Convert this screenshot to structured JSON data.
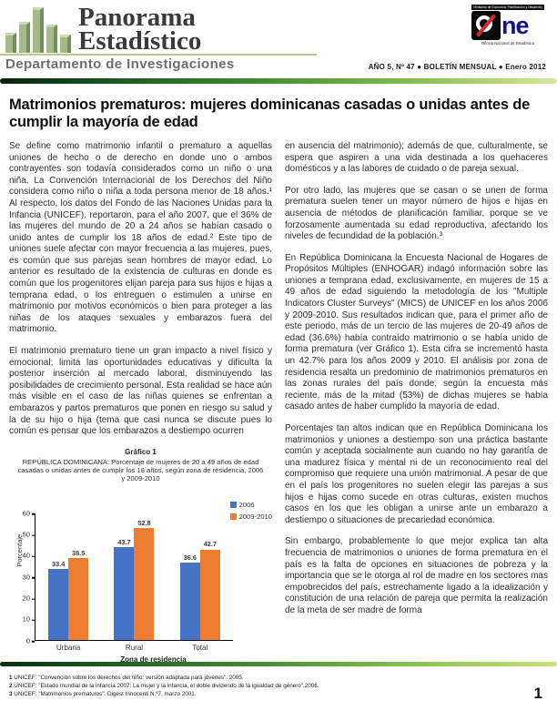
{
  "header": {
    "brand_line1": "Panorama",
    "brand_line2": "Estadístico",
    "department": "Departamento de Investigaciones",
    "issue_line": "AÑO 5, Nº 47 ● BOLETÍN MENSUAL ● Enero 2012",
    "one_logo": {
      "ministry": "Ministerio de Economía, Planificación y Desarrollo",
      "wordmark_suffix": "ne",
      "caption": "Oficina Nacional de Estadística"
    }
  },
  "article": {
    "title": "Matrimonios prematuros: mujeres dominicanas casadas o unidas antes de cumplir la mayoría de edad",
    "left_column": [
      "Se define como matrimonio infantil o prematuro a aquellas uniones de hecho o de derecho en donde uno o ambos contrayentes son todavía considerados como un niño o una niña. La Convención Internacional de los Derechos del Niño considera como niño o niña a toda persona menor de 18 años.¹ Al respecto, los datos del Fondo de las Naciones Unidas para la Infancia (UNICEF), reportaron, para el año 2007, que el 36% de las mujeres del mundo de 20 a 24 años se habían casado o unido antes de cumplir los 18 años de edad.² Este tipo de uniones suele afectar con mayor frecuencia a las mujeres, pues, es común que sus parejas sean hombres de mayor edad. Lo anterior es resultado de la existencia de culturas en donde es común que los progenitores elijan pareja para sus hijos e hijas a temprana edad, o los entreguen o estimulen a unirse en matrimonio por motivos económicos o bien para proteger a las niñas de los ataques sexuales y embarazos fuera del matrimonio.",
      "El matrimonio prematuro tiene un gran impacto a nivel físico y emocional; limita las oportunidades educativas y dificulta la posterior inserción al mercado laboral, disminuyendo las posibilidades de crecimiento personal. Esta realidad se hace aún más visible en el caso de las niñas quienes se enfrentan a embarazos y partos prematuros que ponen en riesgo su salud y la de su hijo o hija (tema que casi nunca se discute pues lo común es pensar que los embarazos a destiempo ocurren"
    ],
    "right_column": [
      "en ausencia del matrimonio); además de que, culturalmente, se espera que aspiren a una vida destinada a los quehaceres domésticos y a las labores de cuidado o de pareja sexual.",
      "Por otro lado, las mujeres que se casan o se unen de forma prematura suelen tener un mayor número de hijos e hijas en ausencia de métodos de planificación familiar, porque se ve forzosamente aumentada su edad reproductiva, afectando los niveles de fecundidad de la población.³",
      "En República Dominicana la Encuesta Nacional de Hogares de Propósitos Múltiples (ENHOGAR) indagó información sobre las uniones a temprana edad, exclusivamente, en mujeres de 15 a 49 años de edad siguiendo la metodología de los \"Multiple Indicators Cluster Surveys\" (MICS) de UNICEF en los años 2006 y 2009-2010. Sus resultados indican que, para el primer año de este periodo, más de un tercio de las mujeres de 20-49 años de edad (36.6%) había contraído matrimonio o se había unido de forma prematura (ver Gráfico 1). Esta cifra se incrementó hasta un 42.7% para los años 2009 y 2010. El análisis por zona de residencia resalta un predominio de matrimonios prematuros en las zonas rurales del país donde, según la encuesta más reciente, más de la mitad (53%) de dichas mujeres se había casado antes de haber cumplido la mayoría de edad.",
      "Porcentajes tan altos indican que en República Dominicana los matrimonios y uniones a destiempo son una práctica bastante común y aceptada socialmente aun cuando no hay garantía de una madurez física y mental ni de un reconocimiento real del compromiso que requiere una unión matrimonial. A pesar de que en el país los progenitores no suelen elegir las parejas a sus hijos e hijas como sucede en otras culturas, existen muchos casos en los que les obligan a unirse ante un embarazo a destiempo o situaciones de precariedad económica.",
      "Sin embargo, probablemente lo que mejor explica tan alta frecuencia de matrimonios o uniones de forma prematura en el país es la falta de opciones en situaciones de pobreza y la importancia que se le otorga al rol de madre en los sectores mas empobrecidos del país, estrechamente ligado a la idealización y constitución de una relación de pareja que permita la realización de la meta de ser madre de forma"
    ]
  },
  "chart_data": {
    "type": "bar",
    "title": "Gráfico 1",
    "subtitle": "REPÚBLICA DOMINICANA: Porcentaje de mujeres de 20 a 49 años de edad casadas o unidas antes de cumplir los 18 años, según zona de residencia, 2006 y 2009-2010",
    "categories": [
      "Urbana",
      "Rural",
      "Total"
    ],
    "series": [
      {
        "name": "2006",
        "color": "#4472C4",
        "values": [
          33.4,
          43.7,
          36.6
        ]
      },
      {
        "name": "2009-2010",
        "color": "#ED7D31",
        "values": [
          38.5,
          52.8,
          42.7
        ]
      }
    ],
    "xlabel": "Zona de residencia",
    "ylabel": "Porcentaje",
    "ylim": [
      0,
      60
    ],
    "ytick_step": 10,
    "grid": false,
    "legend_position": "top-right"
  },
  "footnotes": [
    {
      "num": "1",
      "text": "UNICEF: \"Convención sobre los derechos del niño: versión adaptada para jóvenes\". 2005."
    },
    {
      "num": "2",
      "text": "UNICEF: \"Estado mundial de la infancia 2007: La mujer y la infancia, el doble dividendo de la igualdad de género\".2006."
    },
    {
      "num": "3",
      "text": "UNICEF: \"Matrimonios prematuros\". Digest Innocenti N.º7, marzo 2001."
    }
  ],
  "page_number": "1",
  "colors": {
    "brand_green": "#74915d",
    "rule_gradient_dark": "#15541f",
    "rule_gradient_light": "#d9e89a",
    "series_2006": "#4472C4",
    "series_2009_2010": "#ED7D31"
  }
}
